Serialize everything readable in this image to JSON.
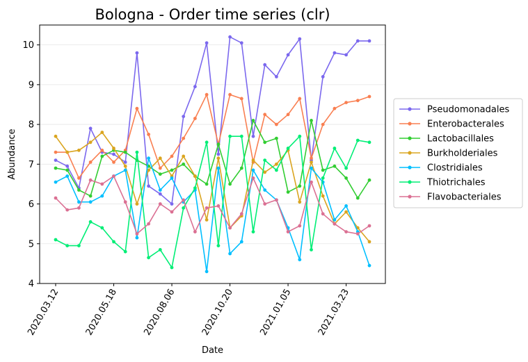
{
  "chart_data": {
    "type": "line",
    "title": "Bologna - Order time series (clr)",
    "xlabel": "Date",
    "ylabel": "Abundance",
    "ylim": [
      4,
      10.5
    ],
    "yticks": [
      4,
      5,
      6,
      7,
      8,
      9,
      10
    ],
    "grid": "horizontal",
    "legend_position": "right",
    "x_tick_labels": [
      "2020.03.12",
      "2020.05.18",
      "2020.08.06",
      "2020.10.20",
      "2021.01.05",
      "2021.03.23"
    ],
    "x_tick_index": [
      0,
      5,
      10,
      15,
      20,
      25
    ],
    "x_count": 28,
    "series": [
      {
        "name": "Pseudomonadales",
        "color": "#7b68ee",
        "values": [
          7.1,
          6.95,
          6.4,
          7.9,
          7.3,
          7.25,
          7.05,
          9.8,
          6.45,
          6.25,
          6.0,
          8.2,
          8.95,
          10.05,
          7.25,
          10.2,
          10.05,
          7.7,
          9.5,
          9.2,
          9.75,
          10.15,
          7.1,
          9.2,
          9.8,
          9.75,
          10.1,
          10.1
        ]
      },
      {
        "name": "Enterobacterales",
        "color": "#f97f51",
        "values": [
          7.3,
          7.3,
          6.65,
          7.05,
          7.35,
          7.05,
          7.35,
          8.4,
          7.75,
          6.9,
          7.2,
          7.65,
          8.15,
          8.75,
          7.5,
          8.75,
          8.65,
          7.05,
          8.25,
          8.0,
          8.25,
          8.65,
          7.15,
          8.0,
          8.4,
          8.55,
          8.6,
          8.7
        ]
      },
      {
        "name": "Lactobacillales",
        "color": "#32cd32",
        "values": [
          6.9,
          6.85,
          6.35,
          6.2,
          7.2,
          7.35,
          7.3,
          7.1,
          6.95,
          6.75,
          6.85,
          7.0,
          6.7,
          6.5,
          7.5,
          6.5,
          6.9,
          8.1,
          7.55,
          7.65,
          6.3,
          6.45,
          8.1,
          6.85,
          6.95,
          6.65,
          6.15,
          6.6
        ]
      },
      {
        "name": "Burkholderiales",
        "color": "#daa520",
        "values": [
          7.7,
          7.3,
          7.35,
          7.55,
          7.8,
          7.4,
          6.95,
          6.0,
          6.85,
          7.15,
          6.7,
          7.2,
          6.7,
          5.6,
          7.15,
          5.4,
          5.7,
          7.1,
          6.8,
          7.0,
          7.35,
          6.05,
          7.05,
          6.2,
          5.5,
          5.8,
          5.4,
          5.05
        ]
      },
      {
        "name": "Clostridiales",
        "color": "#00bfff",
        "values": [
          6.55,
          6.7,
          6.05,
          6.05,
          6.2,
          6.7,
          6.85,
          5.15,
          7.15,
          6.35,
          6.65,
          6.05,
          6.35,
          4.3,
          6.9,
          4.75,
          5.05,
          6.85,
          6.35,
          6.1,
          5.4,
          4.6,
          6.9,
          6.55,
          5.6,
          5.95,
          5.3,
          4.45
        ]
      },
      {
        "name": "Thiotrichales",
        "color": "#00ee76",
        "values": [
          5.1,
          4.95,
          4.95,
          5.55,
          5.4,
          5.05,
          4.8,
          7.3,
          4.65,
          4.85,
          4.4,
          5.9,
          6.4,
          7.55,
          4.95,
          7.7,
          7.7,
          5.3,
          7.1,
          6.85,
          7.4,
          7.7,
          4.85,
          6.65,
          7.4,
          6.9,
          7.6,
          7.55
        ]
      },
      {
        "name": "Flavobacteriales",
        "color": "#db7093",
        "values": [
          6.15,
          5.85,
          5.9,
          6.6,
          6.5,
          6.7,
          6.05,
          5.25,
          5.5,
          6.0,
          5.8,
          6.1,
          5.3,
          5.9,
          5.95,
          5.4,
          5.75,
          6.65,
          6.0,
          6.1,
          5.3,
          5.45,
          6.55,
          5.75,
          5.5,
          5.3,
          5.25,
          5.45
        ]
      }
    ]
  }
}
